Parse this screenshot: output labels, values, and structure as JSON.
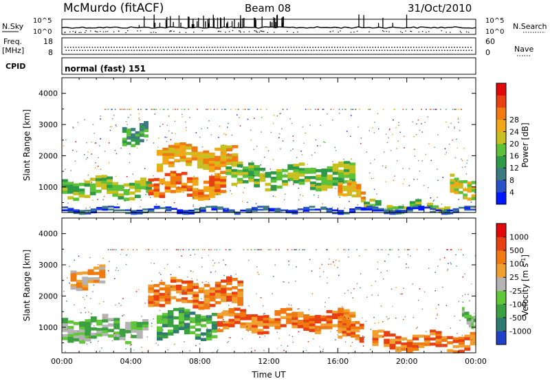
{
  "header": {
    "station": "McMurdo (fitACF)",
    "beam": "Beam 08",
    "date": "31/Oct/2010"
  },
  "noise_panel": {
    "left_label": "N.Sky",
    "right_label": "N.Search",
    "tick_top": "10^5",
    "tick_bottom": "10^0"
  },
  "freq_panel": {
    "left_label_line1": "Freq.",
    "left_label_line2": "[MHz]",
    "left_tick_top": "18",
    "left_tick_bottom": "8",
    "right_label": "Nave",
    "right_tick_top": "60",
    "right_tick_bottom": "0"
  },
  "cpid_panel": {
    "label": "CPID",
    "value": "normal (fast) 151"
  },
  "colors": {
    "frame": "#000000",
    "dots": "#8a8a8a"
  },
  "chart_data": [
    {
      "type": "heatmap",
      "title": "Power",
      "ylabel": "Slant Range [km]",
      "xlabel": "",
      "ylim": [
        180,
        4500
      ],
      "yticks": [
        "1000",
        "2000",
        "3000",
        "4000"
      ],
      "colorbar": {
        "label": "Power [dB]",
        "ticks": [
          "4",
          "8",
          "12",
          "16",
          "20",
          "24",
          "28"
        ],
        "colors": [
          "#0018ff",
          "#2850c8",
          "#3a7a80",
          "#2e9a48",
          "#5cc038",
          "#c8c020",
          "#f0a818",
          "#f07a10",
          "#e84010",
          "#e00808"
        ]
      },
      "features": [
        {
          "t0": 0.0,
          "t1": 5.2,
          "r0": 700,
          "r1": 1250,
          "level": 4
        },
        {
          "t0": 3.5,
          "t1": 5.0,
          "r0": 2400,
          "r1": 3000,
          "level": 3
        },
        {
          "t0": 5.0,
          "t1": 9.5,
          "r0": 700,
          "r1": 1400,
          "level": 7
        },
        {
          "t0": 5.5,
          "t1": 10.2,
          "r0": 1600,
          "r1": 2300,
          "level": 6
        },
        {
          "t0": 9.5,
          "t1": 17.0,
          "r0": 1000,
          "r1": 1700,
          "level": 4
        },
        {
          "t0": 16.0,
          "t1": 17.6,
          "r0": 600,
          "r1": 1100,
          "level": 6
        },
        {
          "t0": 17.5,
          "t1": 22.5,
          "r0": 250,
          "r1": 500,
          "level": 4
        },
        {
          "t0": 22.5,
          "t1": 24.0,
          "r0": 700,
          "r1": 1300,
          "level": 5
        },
        {
          "t0": 0.0,
          "t1": 24.0,
          "r0": 190,
          "r1": 330,
          "level": 1
        }
      ]
    },
    {
      "type": "heatmap",
      "title": "Velocity",
      "ylabel": "Slant Range [km]",
      "xlabel": "Time UT",
      "ylim": [
        180,
        4500
      ],
      "yticks": [
        "1000",
        "2000",
        "3000",
        "4000"
      ],
      "xticks": [
        "00:00",
        "04:00",
        "08:00",
        "12:00",
        "16:00",
        "20:00",
        "00:00"
      ],
      "colorbar": {
        "label": "Velocity [m s^-1]",
        "ticks": [
          "1000",
          "500",
          "100",
          "25",
          "-25",
          "-100",
          "-500",
          "-1000"
        ],
        "colors": [
          "#2040c8",
          "#2e7a70",
          "#3aa040",
          "#60c838",
          "#b4b4b4",
          "#f0a030",
          "#f07a10",
          "#e84010",
          "#e00808"
        ]
      },
      "features": [
        {
          "t0": 0.0,
          "t1": 5.0,
          "r0": 600,
          "r1": 1300,
          "level": 3
        },
        {
          "t0": 0.5,
          "t1": 2.5,
          "r0": 2300,
          "r1": 2900,
          "level": 5
        },
        {
          "t0": 5.0,
          "t1": 10.5,
          "r0": 1700,
          "r1": 2500,
          "level": 6
        },
        {
          "t0": 5.5,
          "t1": 9.0,
          "r0": 700,
          "r1": 1500,
          "level": 2
        },
        {
          "t0": 9.0,
          "t1": 17.0,
          "r0": 900,
          "r1": 1500,
          "level": 6
        },
        {
          "t0": 16.0,
          "t1": 17.5,
          "r0": 600,
          "r1": 1200,
          "level": 6
        },
        {
          "t0": 18.0,
          "t1": 24.0,
          "r0": 300,
          "r1": 800,
          "level": 6
        },
        {
          "t0": 23.2,
          "t1": 24.0,
          "r0": 1100,
          "r1": 1500,
          "level": 3
        }
      ]
    }
  ]
}
